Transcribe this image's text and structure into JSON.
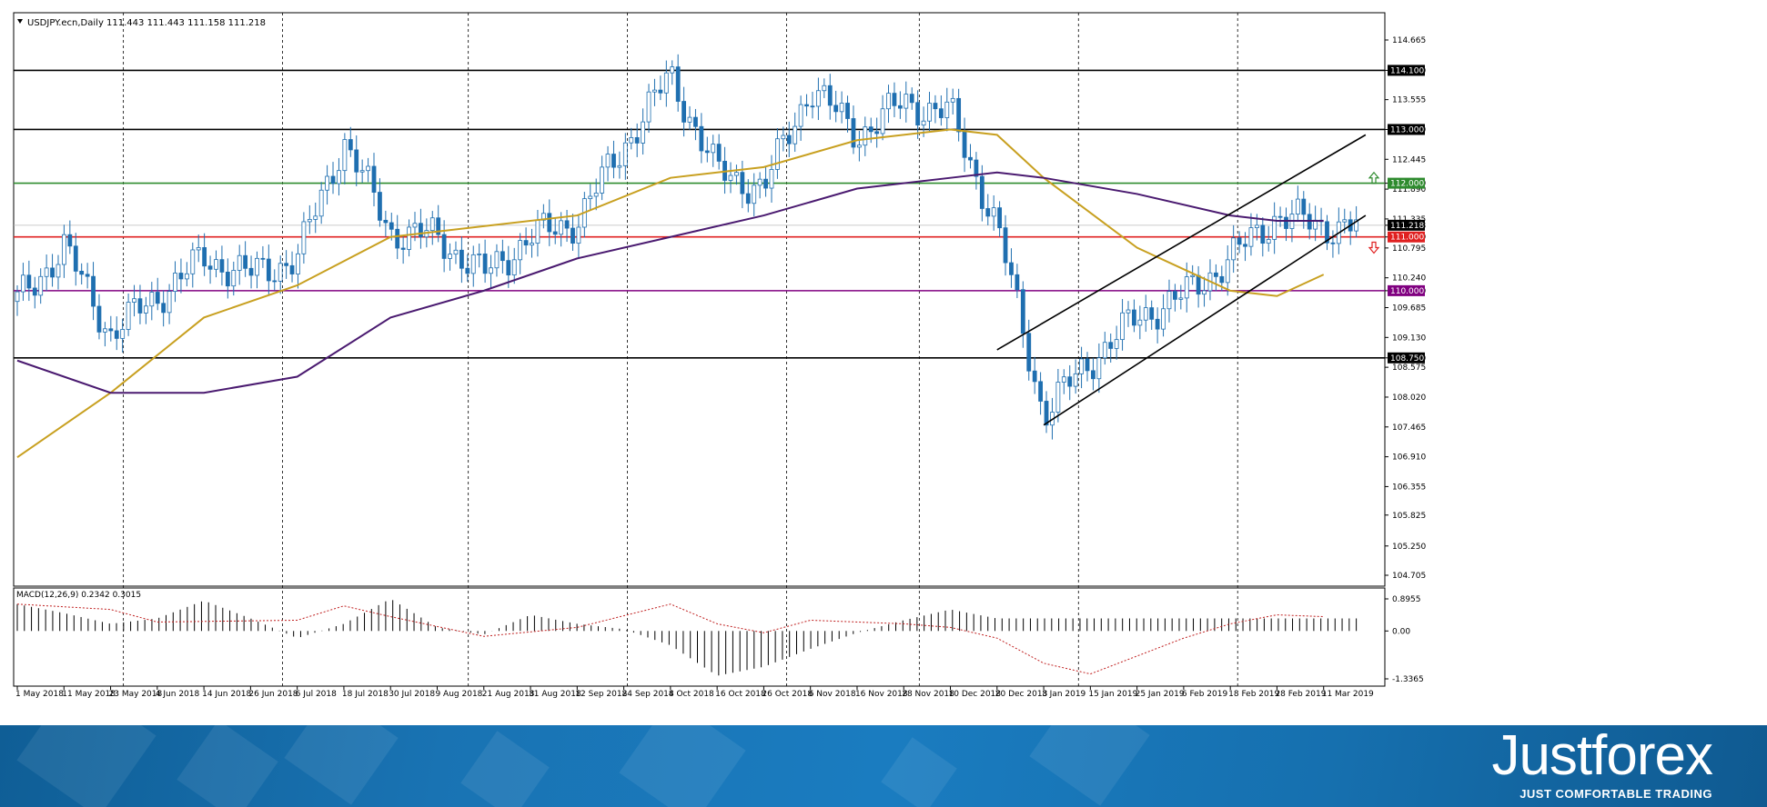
{
  "chart_data": {
    "type": "candlestick",
    "symbol_header": "USDJPY.ecn,Daily  111.443 111.443 111.158 111.218",
    "price_axis": {
      "ticks": [
        "114.665",
        "114.100",
        "113.555",
        "113.000",
        "112.445",
        "112.000",
        "111.890",
        "111.335",
        "111.218",
        "111.000",
        "110.795",
        "110.240",
        "110.000",
        "109.685",
        "109.130",
        "108.750",
        "108.575",
        "108.020",
        "107.465",
        "106.910",
        "106.355",
        "105.825",
        "105.250",
        "104.705"
      ],
      "range": [
        104.705,
        114.665
      ]
    },
    "date_axis": [
      "1 May 2018",
      "11 May 2018",
      "23 May 2018",
      "4 Jun 2018",
      "14 Jun 2018",
      "26 Jun 2018",
      "6 Jul 2018",
      "18 Jul 2018",
      "30 Jul 2018",
      "9 Aug 2018",
      "21 Aug 2018",
      "31 Aug 2018",
      "12 Sep 2018",
      "24 Sep 2018",
      "4 Oct 2018",
      "16 Oct 2018",
      "26 Oct 2018",
      "6 Nov 2018",
      "16 Nov 2018",
      "28 Nov 2018",
      "10 Dec 2018",
      "20 Dec 2018",
      "3 Jan 2019",
      "15 Jan 2019",
      "25 Jan 2019",
      "6 Feb 2019",
      "18 Feb 2019",
      "28 Feb 2019",
      "11 Mar 2019"
    ],
    "levels": [
      {
        "label": "114.100",
        "value": 114.1,
        "color": "#000000"
      },
      {
        "label": "113.000",
        "value": 113.0,
        "color": "#000000"
      },
      {
        "label": "112.000",
        "value": 112.0,
        "color": "#2e8b2e"
      },
      {
        "label": "111.000",
        "value": 111.0,
        "color": "#e02020"
      },
      {
        "label": "110.000",
        "value": 110.0,
        "color": "#800080"
      },
      {
        "label": "108.750",
        "value": 108.75,
        "color": "#000000"
      }
    ],
    "current_price": {
      "label": "111.218",
      "value": 111.218
    },
    "close_path": [
      [
        "1 May 2018",
        109.8
      ],
      [
        "11 May 2018",
        110.8
      ],
      [
        "23 May 2018",
        109.2
      ],
      [
        "4 Jun 2018",
        109.9
      ],
      [
        "14 Jun 2018",
        110.6
      ],
      [
        "26 Jun 2018",
        110.3
      ],
      [
        "6 Jul 2018",
        110.6
      ],
      [
        "18 Jul 2018",
        112.8
      ],
      [
        "30 Jul 2018",
        111.1
      ],
      [
        "9 Aug 2018",
        111.0
      ],
      [
        "21 Aug 2018",
        110.3
      ],
      [
        "31 Aug 2018",
        111.0
      ],
      [
        "12 Sep 2018",
        111.3
      ],
      [
        "24 Sep 2018",
        112.7
      ],
      [
        "4 Oct 2018",
        114.0
      ],
      [
        "16 Oct 2018",
        112.2
      ],
      [
        "26 Oct 2018",
        111.9
      ],
      [
        "6 Nov 2018",
        113.8
      ],
      [
        "16 Nov 2018",
        112.9
      ],
      [
        "28 Nov 2018",
        113.5
      ],
      [
        "10 Dec 2018",
        113.3
      ],
      [
        "20 Dec 2018",
        111.2
      ],
      [
        "3 Jan 2019",
        107.7
      ],
      [
        "15 Jan 2019",
        108.7
      ],
      [
        "25 Jan 2019",
        109.5
      ],
      [
        "6 Feb 2019",
        109.9
      ],
      [
        "18 Feb 2019",
        110.6
      ],
      [
        "28 Feb 2019",
        111.4
      ],
      [
        "11 Mar 2019",
        111.2
      ]
    ],
    "ma_fast": {
      "color": "#c8a020",
      "points": [
        [
          "1 May 2018",
          106.9
        ],
        [
          "23 May 2018",
          108.1
        ],
        [
          "14 Jun 2018",
          109.5
        ],
        [
          "6 Jul 2018",
          110.1
        ],
        [
          "30 Jul 2018",
          111.0
        ],
        [
          "21 Aug 2018",
          111.2
        ],
        [
          "12 Sep 2018",
          111.4
        ],
        [
          "4 Oct 2018",
          112.1
        ],
        [
          "26 Oct 2018",
          112.3
        ],
        [
          "16 Nov 2018",
          112.8
        ],
        [
          "10 Dec 2018",
          113.0
        ],
        [
          "20 Dec 2018",
          112.9
        ],
        [
          "3 Jan 2019",
          112.1
        ],
        [
          "25 Jan 2019",
          110.8
        ],
        [
          "18 Feb 2019",
          110.0
        ],
        [
          "28 Feb 2019",
          109.9
        ],
        [
          "11 Mar 2019",
          110.3
        ]
      ]
    },
    "ma_slow": {
      "color": "#4a1a70",
      "points": [
        [
          "1 May 2018",
          108.7
        ],
        [
          "23 May 2018",
          108.1
        ],
        [
          "14 Jun 2018",
          108.1
        ],
        [
          "6 Jul 2018",
          108.4
        ],
        [
          "30 Jul 2018",
          109.5
        ],
        [
          "21 Aug 2018",
          110.0
        ],
        [
          "12 Sep 2018",
          110.6
        ],
        [
          "4 Oct 2018",
          111.0
        ],
        [
          "26 Oct 2018",
          111.4
        ],
        [
          "16 Nov 2018",
          111.9
        ],
        [
          "10 Dec 2018",
          112.1
        ],
        [
          "20 Dec 2018",
          112.2
        ],
        [
          "3 Jan 2019",
          112.1
        ],
        [
          "25 Jan 2019",
          111.8
        ],
        [
          "18 Feb 2019",
          111.4
        ],
        [
          "28 Feb 2019",
          111.3
        ],
        [
          "11 Mar 2019",
          111.3
        ]
      ]
    },
    "channel": [
      {
        "from": [
          "20 Dec 2018",
          108.9
        ],
        "to": [
          "11 Mar 2019",
          112.9
        ]
      },
      {
        "from": [
          "3 Jan 2019",
          107.5
        ],
        "to": [
          "11 Mar 2019",
          111.4
        ]
      }
    ],
    "indicator": {
      "label": "MACD(12,26,9) 0.2342 0.3015",
      "ticks": [
        "0.8955",
        "0.00",
        "-1.3365"
      ],
      "range": [
        -1.3365,
        0.8955
      ],
      "histogram_path": [
        [
          "1 May 2018",
          0.75
        ],
        [
          "23 May 2018",
          0.5
        ],
        [
          "4 Jun 2018",
          0.2
        ],
        [
          "6 Jul 2018",
          0.35
        ],
        [
          "18 Jul 2018",
          0.85
        ],
        [
          "30 Jul 2018",
          0.35
        ],
        [
          "21 Aug 2018",
          -0.2
        ],
        [
          "12 Sep 2018",
          0.2
        ],
        [
          "4 Oct 2018",
          0.9
        ],
        [
          "16 Oct 2018",
          0.1
        ],
        [
          "26 Oct 2018",
          -0.1
        ],
        [
          "6 Nov 2018",
          0.45
        ],
        [
          "28 Nov 2018",
          0.2
        ],
        [
          "10 Dec 2018",
          0.05
        ],
        [
          "20 Dec 2018",
          -0.4
        ],
        [
          "3 Jan 2019",
          -1.25
        ],
        [
          "15 Jan 2019",
          -1.0
        ],
        [
          "25 Jan 2019",
          -0.5
        ],
        [
          "6 Feb 2019",
          -0.05
        ],
        [
          "18 Feb 2019",
          0.3
        ],
        [
          "28 Feb 2019",
          0.6
        ],
        [
          "11 Mar 2019",
          0.35
        ]
      ],
      "signal_path": [
        [
          "1 May 2018",
          0.75
        ],
        [
          "23 May 2018",
          0.6
        ],
        [
          "4 Jun 2018",
          0.25
        ],
        [
          "6 Jul 2018",
          0.3
        ],
        [
          "18 Jul 2018",
          0.7
        ],
        [
          "30 Jul 2018",
          0.4
        ],
        [
          "21 Aug 2018",
          -0.15
        ],
        [
          "12 Sep 2018",
          0.1
        ],
        [
          "4 Oct 2018",
          0.75
        ],
        [
          "16 Oct 2018",
          0.2
        ],
        [
          "26 Oct 2018",
          -0.05
        ],
        [
          "6 Nov 2018",
          0.3
        ],
        [
          "28 Nov 2018",
          0.2
        ],
        [
          "10 Dec 2018",
          0.1
        ],
        [
          "20 Dec 2018",
          -0.2
        ],
        [
          "3 Jan 2019",
          -0.9
        ],
        [
          "15 Jan 2019",
          -1.2
        ],
        [
          "25 Jan 2019",
          -0.7
        ],
        [
          "6 Feb 2019",
          -0.2
        ],
        [
          "18 Feb 2019",
          0.2
        ],
        [
          "28 Feb 2019",
          0.45
        ],
        [
          "11 Mar 2019",
          0.4
        ]
      ]
    }
  },
  "brand": {
    "name": "Justforex",
    "tagline": "JUST COMFORTABLE TRADING"
  }
}
